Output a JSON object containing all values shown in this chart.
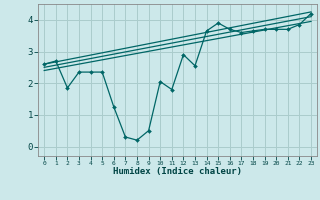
{
  "background_color": "#cce8ea",
  "grid_color": "#aacccc",
  "line_color": "#006666",
  "xlabel": "Humidex (Indice chaleur)",
  "xlim": [
    -0.5,
    23.5
  ],
  "ylim": [
    -0.3,
    4.5
  ],
  "yticks": [
    0,
    1,
    2,
    3,
    4
  ],
  "xticks": [
    0,
    1,
    2,
    3,
    4,
    5,
    6,
    7,
    8,
    9,
    10,
    11,
    12,
    13,
    14,
    15,
    16,
    17,
    18,
    19,
    20,
    21,
    22,
    23
  ],
  "line1_x": [
    0,
    1,
    2,
    3,
    4,
    5,
    6,
    7,
    8,
    9,
    10,
    11,
    12,
    13,
    14,
    15,
    16,
    17,
    18,
    19,
    20,
    21,
    22,
    23
  ],
  "line1_y": [
    2.6,
    2.7,
    1.85,
    2.35,
    2.35,
    2.35,
    1.25,
    0.3,
    0.2,
    0.5,
    2.05,
    1.8,
    2.9,
    2.55,
    3.65,
    3.9,
    3.7,
    3.6,
    3.65,
    3.7,
    3.7,
    3.7,
    3.85,
    4.2
  ],
  "line2_x": [
    0,
    23
  ],
  "line2_y": [
    2.6,
    4.25
  ],
  "line3_x": [
    0,
    23
  ],
  "line3_y": [
    2.5,
    4.1
  ],
  "line4_x": [
    0,
    23
  ],
  "line4_y": [
    2.4,
    3.95
  ]
}
